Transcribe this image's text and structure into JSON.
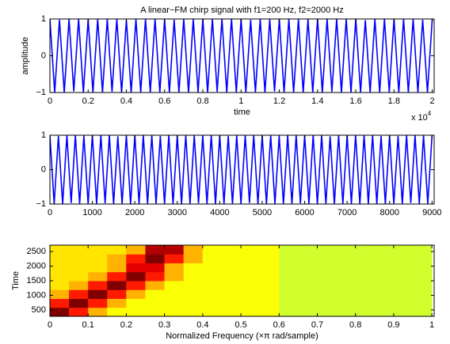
{
  "chart_data": [
    {
      "type": "line",
      "title": "A linear−FM chirp signal with f1=200 Hz, f2=2000 Hz",
      "ylabel": "amplitude",
      "xlabel": "time",
      "x_multiplier_label": "x 10",
      "x_multiplier_exponent": "4",
      "xlim": [
        0,
        20100
      ],
      "ylim": [
        -1,
        1
      ],
      "xticks": [
        0,
        {
          "value": 2000,
          "label": "0.2"
        },
        {
          "value": 4000,
          "label": "0.4"
        },
        {
          "value": 6000,
          "label": "0.6"
        },
        {
          "value": 8000,
          "label": "0.8"
        },
        {
          "value": 10000,
          "label": "1"
        },
        {
          "value": 12000,
          "label": "1.2"
        },
        {
          "value": 14000,
          "label": "1.4"
        },
        {
          "value": 16000,
          "label": "1.6"
        },
        {
          "value": 18000,
          "label": "1.8"
        },
        {
          "value": 20000,
          "label": "2"
        }
      ],
      "yticks": [
        {
          "value": -1,
          "label": "−1"
        },
        0,
        1
      ],
      "series": [
        {
          "color": "#0000ff",
          "x": [
            0,
            250,
            500,
            750,
            1000,
            1250,
            1500,
            1750,
            2000,
            2250,
            2500,
            2750,
            3000,
            3250,
            3500,
            3750,
            4000,
            4250,
            4500,
            4750,
            5000,
            5250,
            5500,
            5750,
            6000,
            6250,
            6500,
            6750,
            7000,
            7250,
            7500,
            7750,
            8000,
            8250,
            8500,
            8750,
            9000,
            9250,
            9500,
            9750,
            10000,
            10250,
            10500,
            10750,
            11000,
            11250,
            11500,
            11750,
            12000,
            12250,
            12500,
            12750,
            13000,
            13250,
            13500,
            13750,
            14000,
            14250,
            14500,
            14750,
            15000,
            15250,
            15500,
            15750,
            16000,
            16250,
            16500,
            16750,
            17000,
            17250,
            17500,
            17750,
            18000,
            18250,
            18500,
            18750,
            19000,
            19250,
            19500,
            19750,
            20000
          ],
          "values": [
            1,
            -1,
            0.98,
            -1,
            1,
            -0.97,
            1,
            -1,
            0.99,
            -1,
            1,
            -1,
            1,
            -0.98,
            1,
            -1,
            0.97,
            -1,
            1,
            -1,
            1,
            -0.99,
            1,
            -1,
            1,
            -1,
            0.98,
            -1,
            1,
            -1,
            0.99,
            -1,
            1,
            -1,
            1,
            -0.98,
            1,
            -1,
            1,
            -1,
            1,
            -1,
            0.98,
            -1,
            1,
            -1,
            1,
            -0.97,
            1,
            -1,
            1,
            -1,
            1,
            -1,
            0.99,
            -1,
            1,
            -1,
            1,
            -0.98,
            1,
            -1,
            1,
            -1,
            1,
            -1,
            0.97,
            -1,
            1,
            -1,
            1,
            -0.99,
            1,
            -1,
            1,
            -1,
            1,
            -1,
            0.98,
            -1,
            1
          ]
        }
      ]
    },
    {
      "type": "line",
      "xlim": [
        0,
        9050
      ],
      "ylim": [
        -1,
        1
      ],
      "xticks": [
        0,
        1000,
        2000,
        3000,
        4000,
        5000,
        6000,
        7000,
        8000,
        9000
      ],
      "yticks": [
        {
          "value": -1,
          "label": "−1"
        },
        0,
        1
      ],
      "series": [
        {
          "color": "#0000ff",
          "x": [
            0,
            100,
            200,
            300,
            400,
            500,
            600,
            700,
            800,
            900,
            1000,
            1100,
            1200,
            1300,
            1400,
            1500,
            1600,
            1700,
            1800,
            1900,
            2000,
            2100,
            2200,
            2300,
            2400,
            2500,
            2600,
            2700,
            2800,
            2900,
            3000,
            3100,
            3200,
            3300,
            3400,
            3500,
            3600,
            3700,
            3800,
            3900,
            4000,
            4100,
            4200,
            4300,
            4400,
            4500,
            4600,
            4700,
            4800,
            4900,
            5000,
            5100,
            5200,
            5300,
            5400,
            5500,
            5600,
            5700,
            5800,
            5900,
            6000,
            6100,
            6200,
            6300,
            6400,
            6500,
            6600,
            6700,
            6800,
            6900,
            7000,
            7100,
            7200,
            7300,
            7400,
            7500,
            7600,
            7700,
            7800,
            7900,
            8000,
            8100,
            8200,
            8300,
            8400,
            8500,
            8600,
            8700,
            8800,
            8900,
            9000
          ],
          "values": [
            1,
            -1,
            0.98,
            -1,
            1,
            -0.97,
            1,
            -1,
            0.99,
            -1,
            1,
            -1,
            1,
            -0.98,
            1,
            -1,
            0.97,
            -1,
            1,
            -1,
            1,
            -0.99,
            1,
            -1,
            1,
            -1,
            0.98,
            -1,
            1,
            -1,
            0.99,
            -1,
            1,
            -1,
            1,
            -0.98,
            1,
            -1,
            1,
            -1,
            1,
            -1,
            0.98,
            -1,
            1,
            -1,
            1,
            -0.97,
            1,
            -1,
            1,
            -1,
            1,
            -1,
            0.99,
            -1,
            1,
            -1,
            1,
            -0.98,
            1,
            -1,
            1,
            -1,
            1,
            -1,
            0.97,
            -1,
            1,
            -1,
            1,
            -0.99,
            1,
            -1,
            1,
            -1,
            1,
            -1,
            0.98,
            -1,
            1,
            -1,
            0.98,
            -1,
            1,
            -0.97,
            1,
            -1,
            0.99,
            -1,
            1
          ]
        }
      ]
    },
    {
      "type": "heatmap",
      "xlabel": "Normalized Frequency  (×π rad/sample)",
      "ylabel": "Time",
      "colormap": "jet",
      "xlim": [
        0,
        1.006
      ],
      "ylim": [
        280,
        2720
      ],
      "xticks": [
        0,
        0.1,
        0.2,
        0.3,
        0.4,
        0.5,
        0.6,
        0.7,
        0.8,
        0.9,
        1
      ],
      "yticks": [
        500,
        1000,
        1500,
        2000,
        2500
      ],
      "x": [
        0.025,
        0.075,
        0.125,
        0.175,
        0.225,
        0.275,
        0.325,
        0.375,
        0.425,
        0.475,
        0.525,
        0.575,
        0.625,
        0.675,
        0.725,
        0.775,
        0.825,
        0.875,
        0.925,
        0.975
      ],
      "y": [
        432.5,
        737.5,
        1042.5,
        1347.5,
        1652.5,
        1957.5,
        2262.5,
        2567.5
      ],
      "values": [
        [
          1.0,
          0.85,
          0.7,
          0.62,
          0.62,
          0.62,
          0.62,
          0.62,
          0.62,
          0.62,
          0.62,
          0.62,
          0.58,
          0.58,
          0.58,
          0.58,
          0.58,
          0.58,
          0.58,
          0.58
        ],
        [
          0.85,
          1.0,
          0.85,
          0.7,
          0.62,
          0.62,
          0.62,
          0.62,
          0.62,
          0.62,
          0.62,
          0.62,
          0.58,
          0.58,
          0.58,
          0.58,
          0.58,
          0.58,
          0.58,
          0.58
        ],
        [
          0.7,
          0.85,
          1.0,
          0.85,
          0.7,
          0.62,
          0.62,
          0.62,
          0.62,
          0.62,
          0.62,
          0.62,
          0.58,
          0.58,
          0.58,
          0.58,
          0.58,
          0.58,
          0.58,
          0.58
        ],
        [
          0.65,
          0.7,
          0.85,
          1.0,
          0.85,
          0.7,
          0.62,
          0.62,
          0.62,
          0.62,
          0.62,
          0.62,
          0.58,
          0.58,
          0.58,
          0.58,
          0.58,
          0.58,
          0.58,
          0.58
        ],
        [
          0.65,
          0.65,
          0.7,
          0.85,
          1.0,
          0.85,
          0.7,
          0.62,
          0.62,
          0.62,
          0.62,
          0.62,
          0.58,
          0.58,
          0.58,
          0.58,
          0.58,
          0.58,
          0.58,
          0.58
        ],
        [
          0.65,
          0.65,
          0.65,
          0.7,
          0.9,
          0.9,
          0.7,
          0.62,
          0.62,
          0.62,
          0.62,
          0.62,
          0.58,
          0.58,
          0.58,
          0.58,
          0.58,
          0.58,
          0.58,
          0.58
        ],
        [
          0.65,
          0.65,
          0.65,
          0.7,
          0.85,
          1.0,
          0.85,
          0.7,
          0.62,
          0.62,
          0.62,
          0.62,
          0.58,
          0.58,
          0.58,
          0.58,
          0.58,
          0.58,
          0.58,
          0.58
        ],
        [
          0.65,
          0.65,
          0.65,
          0.65,
          0.7,
          0.95,
          0.95,
          0.7,
          0.62,
          0.62,
          0.62,
          0.62,
          0.58,
          0.58,
          0.58,
          0.58,
          0.58,
          0.58,
          0.58,
          0.58
        ]
      ]
    }
  ]
}
